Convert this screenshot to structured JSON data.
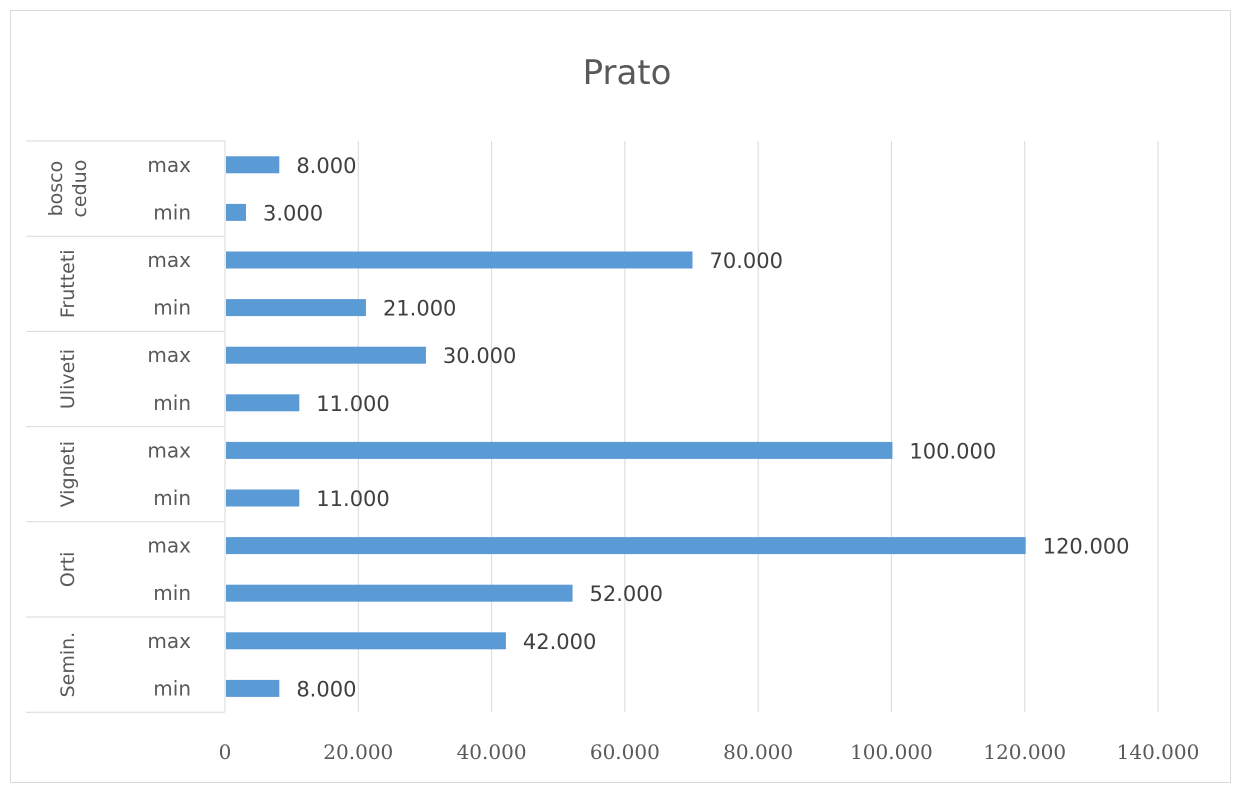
{
  "chart_data": {
    "type": "bar",
    "orientation": "horizontal",
    "title": "Prato",
    "xlim": [
      0,
      140000
    ],
    "xticks": [
      0,
      20000,
      40000,
      60000,
      80000,
      100000,
      120000,
      140000
    ],
    "xtick_labels": [
      "0",
      "20.000",
      "40.000",
      "60.000",
      "80.000",
      "100.000",
      "120.000",
      "140.000"
    ],
    "grid": "vertical",
    "bar_color": "#5b9bd5",
    "groups": [
      {
        "name": "bosco ceduo",
        "name_lines": [
          "bosco",
          "ceduo"
        ],
        "rows": [
          {
            "label": "max",
            "value": 8000,
            "value_label": "8.000"
          },
          {
            "label": "min",
            "value": 3000,
            "value_label": "3.000"
          }
        ]
      },
      {
        "name": "Frutteti",
        "name_lines": [
          "Frutteti"
        ],
        "rows": [
          {
            "label": "max",
            "value": 70000,
            "value_label": "70.000"
          },
          {
            "label": "min",
            "value": 21000,
            "value_label": "21.000"
          }
        ]
      },
      {
        "name": "Uliveti",
        "name_lines": [
          "Uliveti"
        ],
        "rows": [
          {
            "label": "max",
            "value": 30000,
            "value_label": "30.000"
          },
          {
            "label": "min",
            "value": 11000,
            "value_label": "11.000"
          }
        ]
      },
      {
        "name": "Vigneti",
        "name_lines": [
          "Vigneti"
        ],
        "rows": [
          {
            "label": "max",
            "value": 100000,
            "value_label": "100.000"
          },
          {
            "label": "min",
            "value": 11000,
            "value_label": "11.000"
          }
        ]
      },
      {
        "name": "Orti",
        "name_lines": [
          "Orti"
        ],
        "rows": [
          {
            "label": "max",
            "value": 120000,
            "value_label": "120.000"
          },
          {
            "label": "min",
            "value": 52000,
            "value_label": "52.000"
          }
        ]
      },
      {
        "name": "Semin.",
        "name_lines": [
          "Semin."
        ],
        "rows": [
          {
            "label": "max",
            "value": 42000,
            "value_label": "42.000"
          },
          {
            "label": "min",
            "value": 8000,
            "value_label": "8.000"
          }
        ]
      }
    ]
  }
}
